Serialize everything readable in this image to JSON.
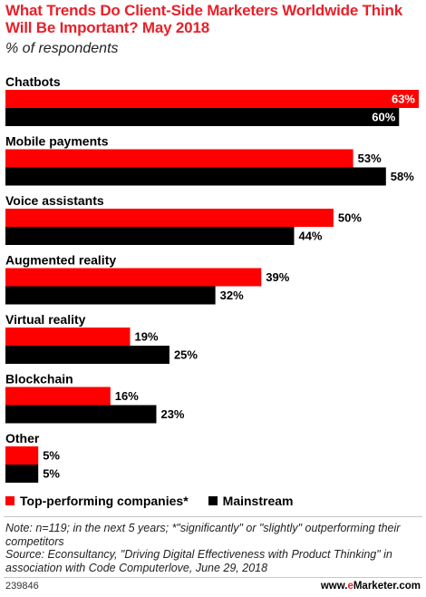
{
  "header": {
    "title": "What Trends Do Client-Side Marketers Worldwide Think Will Be Important? May 2018",
    "subtitle": "% of respondents"
  },
  "colors": {
    "top": "#ff0000",
    "mainstream": "#000000",
    "title": "#e8202a"
  },
  "chart_data": {
    "type": "bar",
    "orientation": "horizontal",
    "title": "What Trends Do Client-Side Marketers Worldwide Think Will Be Important? May 2018",
    "subtitle": "% of respondents",
    "categories": [
      "Chatbots",
      "Mobile payments",
      "Voice assistants",
      "Augmented reality",
      "Virtual reality",
      "Blockchain",
      "Other"
    ],
    "series": [
      {
        "name": "Top-performing companies*",
        "values": [
          63,
          53,
          50,
          39,
          19,
          16,
          5
        ]
      },
      {
        "name": "Mainstream",
        "values": [
          60,
          58,
          44,
          32,
          25,
          23,
          5
        ]
      }
    ],
    "value_suffix": "%",
    "xlim": [
      0,
      63
    ],
    "legend": "bottom-left",
    "grid": false
  },
  "legend": {
    "top_label": "Top-performing companies*",
    "mainstream_label": "Mainstream"
  },
  "notes": {
    "note": "Note: n=119; in the next 5 years; *\"significantly\" or \"slightly\" outperforming their competitors",
    "source": "Source: Econsultancy, \"Driving Digital Effectiveness with Product Thinking\" in association with Code Computerlove, June 29, 2018"
  },
  "footer": {
    "chart_id": "239846",
    "brand_prefix": "www.",
    "brand_e": "e",
    "brand_rest": "Marketer.com"
  }
}
